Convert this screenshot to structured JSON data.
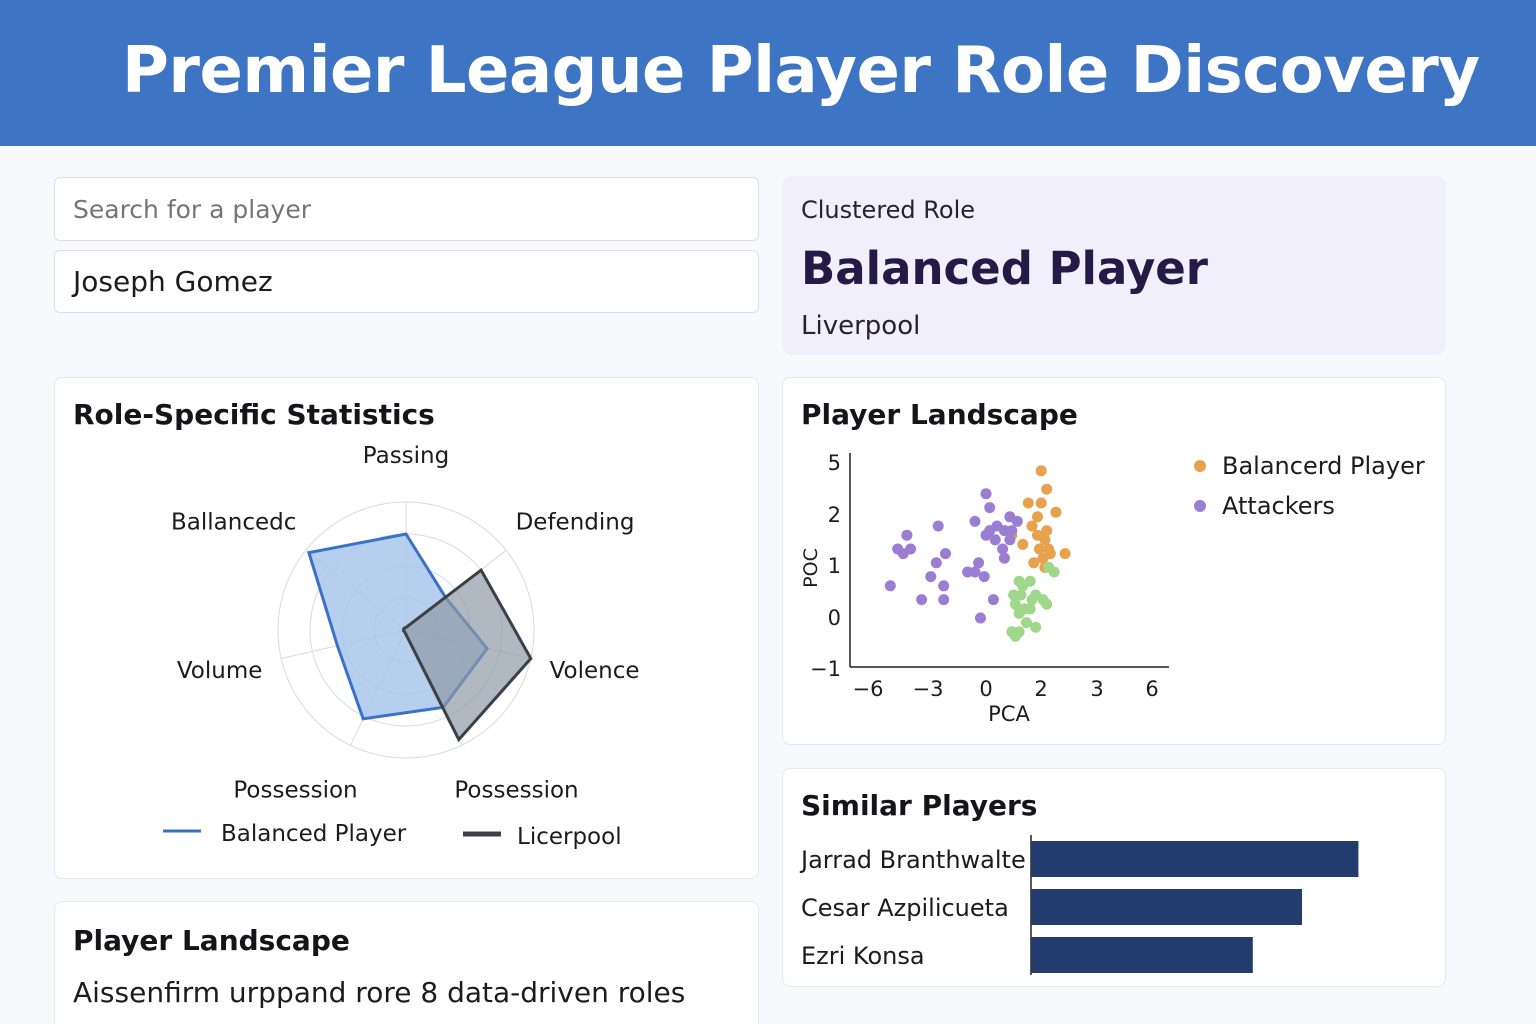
{
  "header": {
    "title": "Premier League Player Role Discovery"
  },
  "search": {
    "placeholder": "Search for a player",
    "selected_player": "Joseph Gomez"
  },
  "role_card": {
    "label": "Clustered Role",
    "role": "Balanced Player",
    "team": "Liverpool"
  },
  "radar": {
    "title": "Role-Specific Statistics",
    "axes": [
      "Passing",
      "Defending",
      "Volence",
      "Possession",
      "Possession",
      "Volume",
      "Ballancedc"
    ],
    "series": [
      {
        "name": "Balanced Player",
        "color": "#3a72c6",
        "fill": "#a4c3ea",
        "values": [
          0.75,
          0.4,
          0.65,
          0.67,
          0.77,
          0.55,
          0.97
        ]
      },
      {
        "name": "Licerpool",
        "color": "#3b3f46",
        "fill": "#8f9aa6",
        "values": [
          0.02,
          0.75,
          1.0,
          0.95,
          0.02,
          0.02,
          0.02
        ]
      }
    ]
  },
  "chart_data": [
    {
      "type": "scatter",
      "title": "Player Landscape",
      "xlabel": "PCA",
      "ylabel": "POC",
      "xticks": [
        "−6",
        "−3",
        "0",
        "2",
        "3",
        "6"
      ],
      "yticks": [
        "5",
        "2",
        "1",
        "0",
        "−1"
      ],
      "series": [
        {
          "name": "Balancerd Player",
          "color": "#e8a24d",
          "points": [
            [
              3,
              3.2
            ],
            [
              3.3,
              2.8
            ],
            [
              2.3,
              2.5
            ],
            [
              3,
              2.5
            ],
            [
              2.8,
              2.2
            ],
            [
              3.8,
              2.3
            ],
            [
              2.5,
              2
            ],
            [
              1.4,
              1.8
            ],
            [
              2.8,
              1.8
            ],
            [
              3.3,
              1.9
            ],
            [
              2,
              1.6
            ],
            [
              2.9,
              1.5
            ],
            [
              3.4,
              1.5
            ],
            [
              3.1,
              1.3
            ],
            [
              3.5,
              1.4
            ],
            [
              2.6,
              1.2
            ],
            [
              3.2,
              1.1
            ],
            [
              4.3,
              1.4
            ],
            [
              3.2,
              1.7
            ]
          ]
        },
        {
          "name": "Attackers",
          "color": "#9b7ed2",
          "points": [
            [
              0,
              2.7
            ],
            [
              0.2,
              2.4
            ],
            [
              1.7,
              2.1
            ],
            [
              -0.6,
              2.1
            ],
            [
              0.2,
              1.9
            ],
            [
              0.6,
              2
            ],
            [
              1.3,
              2.2
            ],
            [
              -2.6,
              2
            ],
            [
              0,
              1.8
            ],
            [
              0.5,
              1.7
            ],
            [
              1,
              1.9
            ],
            [
              1.4,
              1.9
            ],
            [
              1.3,
              1.7
            ],
            [
              0.9,
              1.5
            ],
            [
              -4.3,
              1.8
            ],
            [
              -4.8,
              1.5
            ],
            [
              -4.5,
              1.4
            ],
            [
              -4.1,
              1.5
            ],
            [
              -2.2,
              1.4
            ],
            [
              -2.7,
              1.2
            ],
            [
              1,
              1.3
            ],
            [
              -0.4,
              1.2
            ],
            [
              -1,
              1
            ],
            [
              -0.6,
              1
            ],
            [
              -3,
              0.9
            ],
            [
              -2.3,
              0.7
            ],
            [
              -0.1,
              0.9
            ],
            [
              -5.2,
              0.7
            ],
            [
              -3.5,
              0.4
            ],
            [
              -2.3,
              0.4
            ],
            [
              0.4,
              0.4
            ],
            [
              -0.3,
              0
            ]
          ]
        },
        {
          "name": "",
          "color": "#9fd88a",
          "points": [
            [
              2.4,
              0.8
            ],
            [
              3.4,
              1.1
            ],
            [
              3.7,
              1
            ],
            [
              1.8,
              0.8
            ],
            [
              2,
              0.7
            ],
            [
              1.5,
              0.5
            ],
            [
              1.9,
              0.5
            ],
            [
              2.5,
              0.4
            ],
            [
              2.7,
              0.5
            ],
            [
              1.6,
              0.3
            ],
            [
              2.1,
              0.2
            ],
            [
              3.1,
              0.4
            ],
            [
              3.3,
              0.3
            ],
            [
              2.4,
              0.2
            ],
            [
              1.8,
              0.1
            ],
            [
              2.2,
              -0.1
            ],
            [
              1.4,
              -0.3
            ],
            [
              1.6,
              -0.4
            ],
            [
              1.8,
              -0.3
            ],
            [
              2.7,
              -0.2
            ]
          ]
        }
      ]
    },
    {
      "type": "bar",
      "title": "Similar Players",
      "categories": [
        "Jarrad Branthwalte",
        "Cesar Azpilicueta",
        "Ezri Konsa"
      ],
      "values": [
        0.93,
        0.77,
        0.63
      ],
      "color": "#223c6e"
    }
  ],
  "about": {
    "title": "Player Landscape",
    "text": "Aissenfirm urppand rore 8 data-driven roles"
  }
}
